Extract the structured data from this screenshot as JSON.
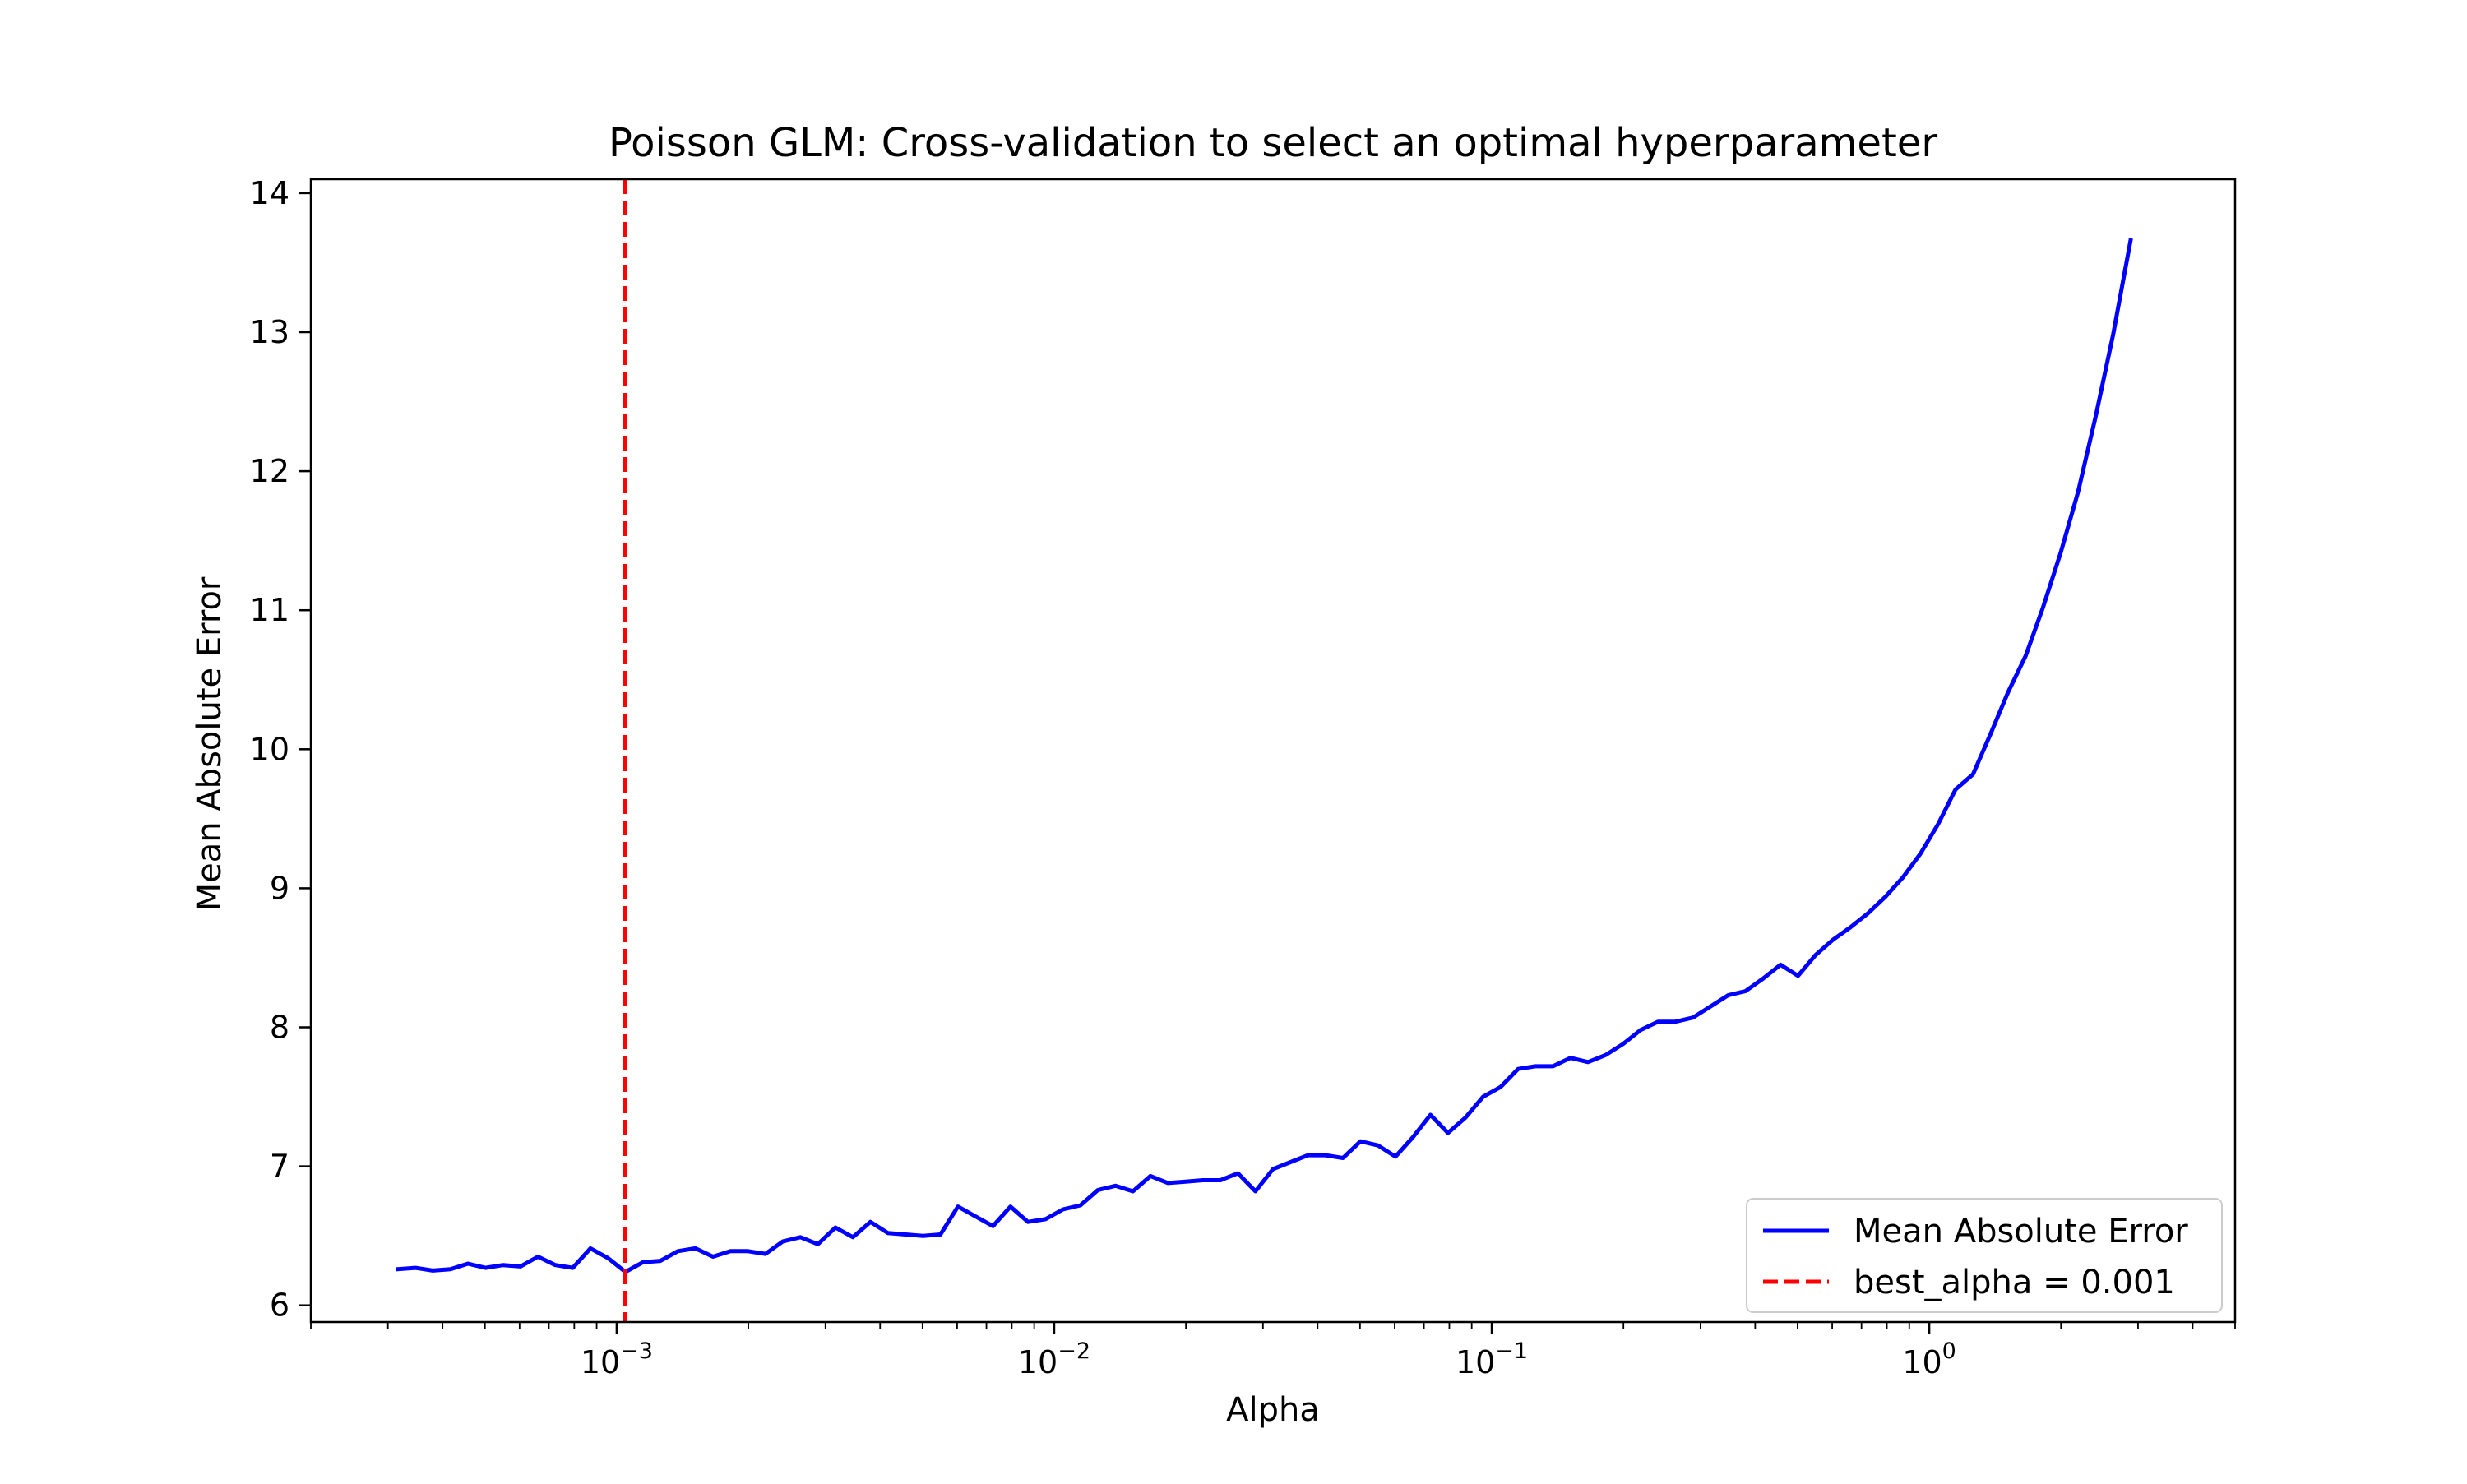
{
  "chart_data": {
    "type": "line",
    "title": "Poisson GLM: Cross-validation to select an optimal hyperparameter",
    "xlabel": "Alpha",
    "ylabel": "Mean Absolute Error",
    "xscale": "log",
    "xlim": [
      0.0002,
      5.0
    ],
    "ylim": [
      5.88,
      14.1
    ],
    "x_ticks": [
      {
        "value": 0.001,
        "base": "10",
        "exp": "−3"
      },
      {
        "value": 0.01,
        "base": "10",
        "exp": "−2"
      },
      {
        "value": 0.1,
        "base": "10",
        "exp": "−1"
      },
      {
        "value": 1,
        "base": "10",
        "exp": "0"
      }
    ],
    "y_ticks": [
      "6",
      "7",
      "8",
      "9",
      "10",
      "11",
      "12",
      "13",
      "14"
    ],
    "grid": false,
    "legend_position": "lower right",
    "series": [
      {
        "name": "Mean Absolute Error",
        "style": "solid",
        "color": "#0000ff",
        "points": [
          [
            0.000316,
            6.26
          ],
          [
            0.000347,
            6.27
          ],
          [
            0.00038,
            6.25
          ],
          [
            0.000417,
            6.26
          ],
          [
            0.000457,
            6.3
          ],
          [
            0.000501,
            6.27
          ],
          [
            0.00055,
            6.29
          ],
          [
            0.000603,
            6.28
          ],
          [
            0.000661,
            6.35
          ],
          [
            0.000724,
            6.29
          ],
          [
            0.000794,
            6.27
          ],
          [
            0.000871,
            6.41
          ],
          [
            0.000955,
            6.34
          ],
          [
            0.001047,
            6.24
          ],
          [
            0.001148,
            6.31
          ],
          [
            0.001259,
            6.32
          ],
          [
            0.00138,
            6.39
          ],
          [
            0.001514,
            6.41
          ],
          [
            0.00166,
            6.35
          ],
          [
            0.00182,
            6.39
          ],
          [
            0.001995,
            6.39
          ],
          [
            0.002188,
            6.37
          ],
          [
            0.002399,
            6.46
          ],
          [
            0.00263,
            6.49
          ],
          [
            0.002884,
            6.44
          ],
          [
            0.003162,
            6.56
          ],
          [
            0.003467,
            6.49
          ],
          [
            0.003802,
            6.6
          ],
          [
            0.004169,
            6.52
          ],
          [
            0.004571,
            6.51
          ],
          [
            0.005012,
            6.5
          ],
          [
            0.005495,
            6.51
          ],
          [
            0.006026,
            6.71
          ],
          [
            0.006607,
            6.64
          ],
          [
            0.007244,
            6.57
          ],
          [
            0.007943,
            6.71
          ],
          [
            0.00871,
            6.6
          ],
          [
            0.00955,
            6.62
          ],
          [
            0.010471,
            6.69
          ],
          [
            0.011482,
            6.72
          ],
          [
            0.012589,
            6.83
          ],
          [
            0.013804,
            6.86
          ],
          [
            0.015136,
            6.82
          ],
          [
            0.016596,
            6.93
          ],
          [
            0.018197,
            6.88
          ],
          [
            0.019953,
            6.89
          ],
          [
            0.021878,
            6.9
          ],
          [
            0.023988,
            6.9
          ],
          [
            0.026303,
            6.95
          ],
          [
            0.02884,
            6.82
          ],
          [
            0.031623,
            6.98
          ],
          [
            0.034674,
            7.03
          ],
          [
            0.038019,
            7.08
          ],
          [
            0.041687,
            7.08
          ],
          [
            0.045709,
            7.06
          ],
          [
            0.050119,
            7.18
          ],
          [
            0.054954,
            7.15
          ],
          [
            0.060256,
            7.07
          ],
          [
            0.066069,
            7.21
          ],
          [
            0.072444,
            7.37
          ],
          [
            0.079433,
            7.24
          ],
          [
            0.087096,
            7.35
          ],
          [
            0.095499,
            7.5
          ],
          [
            0.104713,
            7.57
          ],
          [
            0.114815,
            7.7
          ],
          [
            0.125893,
            7.72
          ],
          [
            0.138038,
            7.72
          ],
          [
            0.151356,
            7.78
          ],
          [
            0.165959,
            7.75
          ],
          [
            0.18197,
            7.8
          ],
          [
            0.199526,
            7.88
          ],
          [
            0.218776,
            7.98
          ],
          [
            0.239883,
            8.04
          ],
          [
            0.263027,
            8.04
          ],
          [
            0.288403,
            8.07
          ],
          [
            0.316228,
            8.15
          ],
          [
            0.346737,
            8.23
          ],
          [
            0.380189,
            8.26
          ],
          [
            0.416869,
            8.35
          ],
          [
            0.457088,
            8.45
          ],
          [
            0.501187,
            8.37
          ],
          [
            0.549541,
            8.52
          ],
          [
            0.60256,
            8.63
          ],
          [
            0.660693,
            8.72
          ],
          [
            0.724436,
            8.82
          ],
          [
            0.794328,
            8.94
          ],
          [
            0.870964,
            9.08
          ],
          [
            0.954993,
            9.25
          ],
          [
            1.047129,
            9.46
          ],
          [
            1.148154,
            9.71
          ],
          [
            1.258925,
            9.82
          ],
          [
            1.380384,
            10.11
          ],
          [
            1.513561,
            10.41
          ],
          [
            1.659587,
            10.67
          ],
          [
            1.819701,
            11.02
          ],
          [
            1.995262,
            11.41
          ],
          [
            2.187762,
            11.85
          ],
          [
            2.398833,
            12.39
          ],
          [
            2.630268,
            12.98
          ],
          [
            2.884032,
            13.66
          ]
        ]
      },
      {
        "name": "best_alpha = 0.001",
        "style": "dashed",
        "color": "#ff0000",
        "vline_x": 0.001047
      }
    ]
  }
}
